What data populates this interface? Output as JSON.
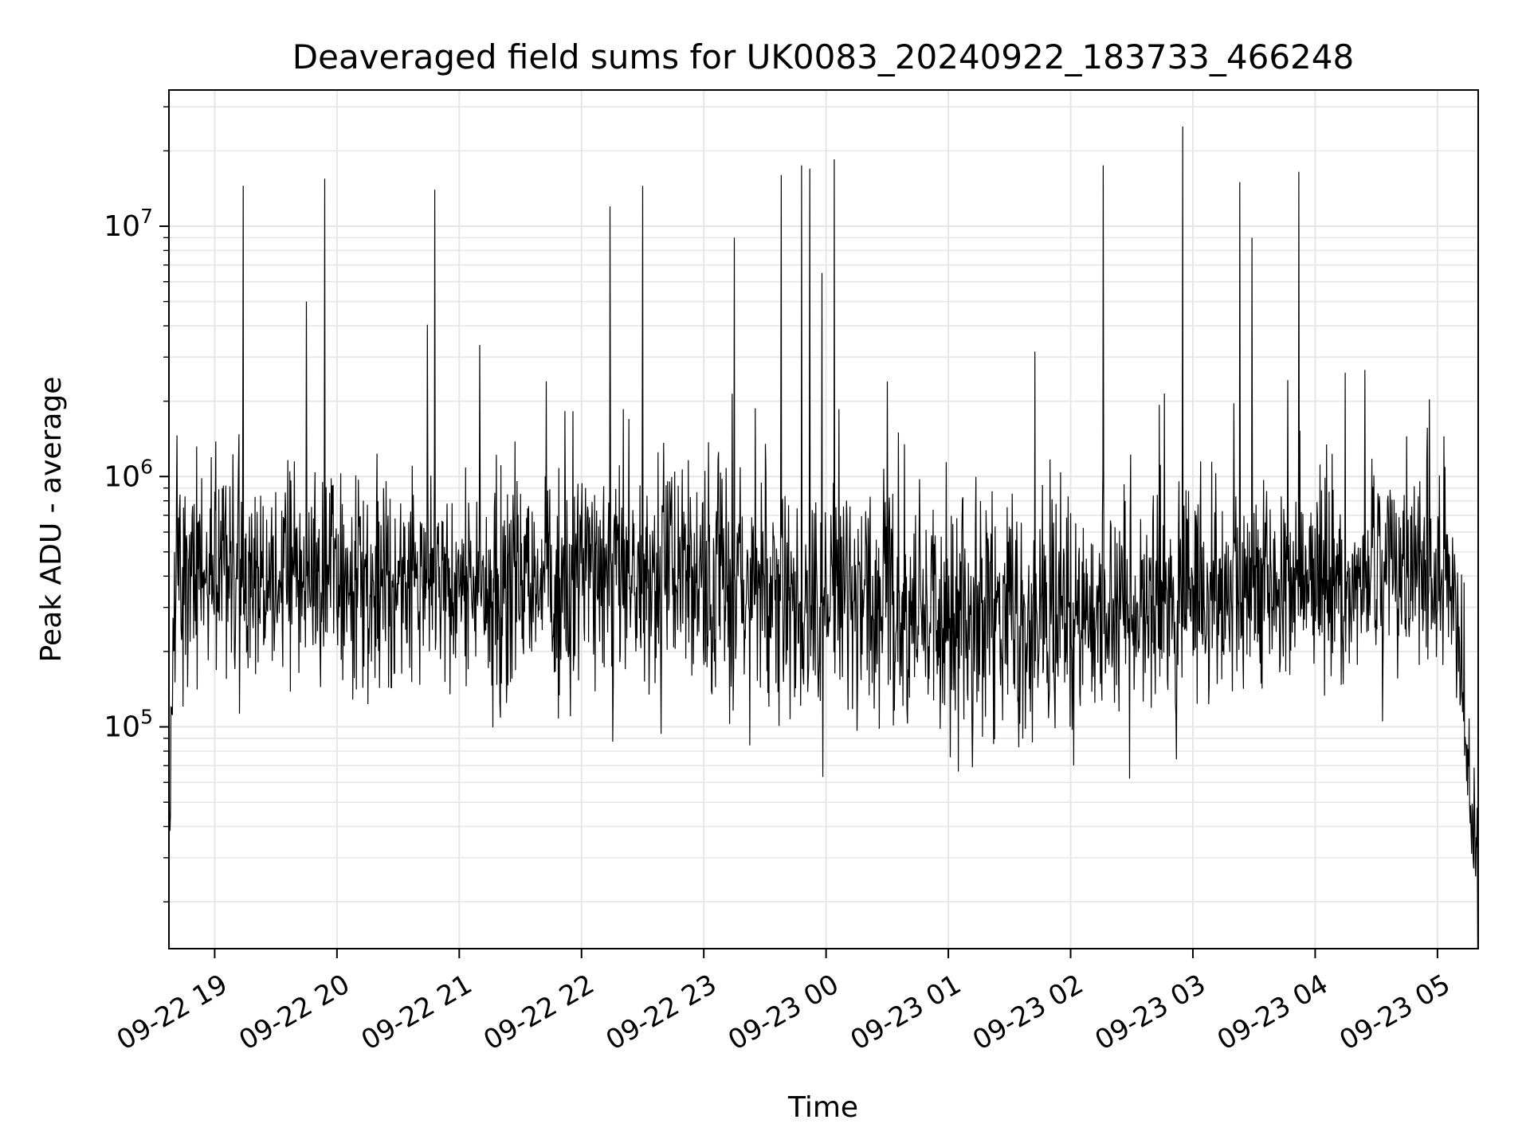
{
  "chart_data": {
    "type": "line",
    "title": "Deaveraged field sums for UK0083_20240922_183733_466248",
    "xlabel": "Time",
    "ylabel": "Peak ADU - average",
    "yscale": "log",
    "x_range": [
      "2024-09-22 18:37:33",
      "2024-09-23 05:20:00"
    ],
    "ylim": [
      13000,
      35000000
    ],
    "grid": true,
    "line_color": "#000000",
    "grid_color": "#e6e6e6",
    "x_ticks": [
      {
        "t": "2024-09-22 19:00",
        "label": "09-22 19"
      },
      {
        "t": "2024-09-22 20:00",
        "label": "09-22 20"
      },
      {
        "t": "2024-09-22 21:00",
        "label": "09-22 21"
      },
      {
        "t": "2024-09-22 22:00",
        "label": "09-22 22"
      },
      {
        "t": "2024-09-22 23:00",
        "label": "09-22 23"
      },
      {
        "t": "2024-09-23 00:00",
        "label": "09-23 00"
      },
      {
        "t": "2024-09-23 01:00",
        "label": "09-23 01"
      },
      {
        "t": "2024-09-23 02:00",
        "label": "09-23 02"
      },
      {
        "t": "2024-09-23 03:00",
        "label": "09-23 03"
      },
      {
        "t": "2024-09-23 04:00",
        "label": "09-23 04"
      },
      {
        "t": "2024-09-23 05:00",
        "label": "09-23 05"
      }
    ],
    "y_ticks": [
      {
        "value": 100000,
        "label": "10",
        "exp": "5"
      },
      {
        "value": 1000000,
        "label": "10",
        "exp": "6"
      },
      {
        "value": 10000000,
        "label": "10",
        "exp": "7"
      }
    ],
    "spikes": [
      {
        "t": "2024-09-22 19:14",
        "y": 14500000
      },
      {
        "t": "2024-09-22 19:45",
        "y": 5000000
      },
      {
        "t": "2024-09-22 19:54",
        "y": 15500000
      },
      {
        "t": "2024-09-22 20:48",
        "y": 14000000
      },
      {
        "t": "2024-09-22 22:14",
        "y": 12000000
      },
      {
        "t": "2024-09-22 22:30",
        "y": 14500000
      },
      {
        "t": "2024-09-22 23:15",
        "y": 9000000
      },
      {
        "t": "2024-09-22 23:38",
        "y": 16000000
      },
      {
        "t": "2024-09-22 23:48",
        "y": 17500000
      },
      {
        "t": "2024-09-22 23:52",
        "y": 17000000
      },
      {
        "t": "2024-09-22 23:58",
        "y": 6500000
      },
      {
        "t": "2024-09-23 00:04",
        "y": 18500000
      },
      {
        "t": "2024-09-23 02:16",
        "y": 17500000
      },
      {
        "t": "2024-09-23 02:55",
        "y": 25000000
      },
      {
        "t": "2024-09-23 03:23",
        "y": 15000000
      },
      {
        "t": "2024-09-23 03:29",
        "y": 9000000
      },
      {
        "t": "2024-09-23 03:52",
        "y": 16500000
      }
    ],
    "baseline": {
      "points": 2600,
      "segments": [
        {
          "t": "2024-09-22 18:37:33",
          "center": 55000,
          "spread": 0.5
        },
        {
          "t": "2024-09-22 18:41",
          "center": 420000,
          "spread": 0.38
        },
        {
          "t": "2024-09-22 21:00",
          "center": 380000,
          "spread": 0.38
        },
        {
          "t": "2024-09-22 23:00",
          "center": 420000,
          "spread": 0.42
        },
        {
          "t": "2024-09-23 00:00",
          "center": 300000,
          "spread": 0.45
        },
        {
          "t": "2024-09-23 02:00",
          "center": 290000,
          "spread": 0.45
        },
        {
          "t": "2024-09-23 04:00",
          "center": 380000,
          "spread": 0.36
        },
        {
          "t": "2024-09-23 05:05",
          "center": 450000,
          "spread": 0.38
        },
        {
          "t": "2024-09-23 05:13",
          "center": 110000,
          "spread": 0.3
        },
        {
          "t": "2024-09-23 05:20",
          "center": 24000,
          "spread": 0.25
        }
      ]
    }
  }
}
